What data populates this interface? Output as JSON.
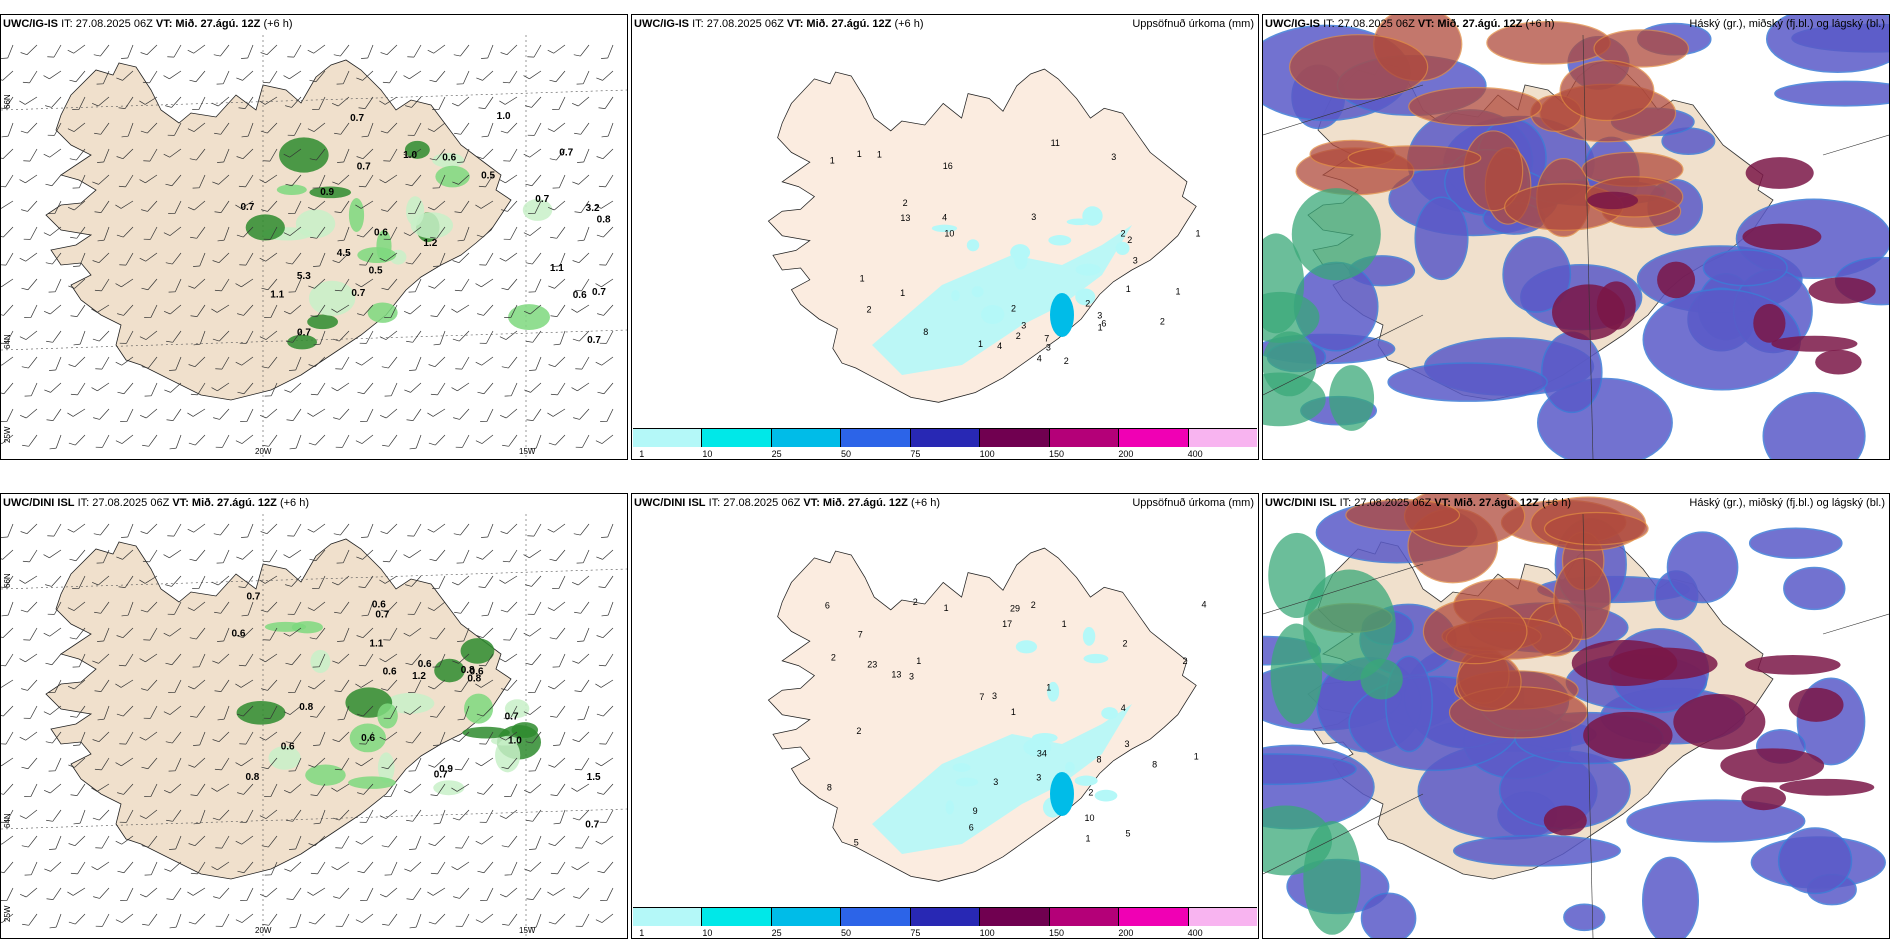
{
  "panels": {
    "top_left": {
      "model": "UWC/IG-IS",
      "it": "IT: 27.08.2025 06Z",
      "vt": "VT: Mið. 27.ágú. 12Z",
      "lead": "(+6 h)",
      "right": ""
    },
    "top_mid": {
      "model": "UWC/IG-IS",
      "it": "IT: 27.08.2025 06Z",
      "vt": "VT: Mið. 27.ágú. 12Z",
      "lead": "(+6 h)",
      "right": "Uppsöfnuð úrkoma (mm)"
    },
    "top_right": {
      "model": "UWC/IG-IS",
      "it": "IT: 27.08.2025 06Z",
      "vt": "VT: Mið. 27.ágú. 12Z",
      "lead": "(+6 h)",
      "right": "Háský (gr.), miðský (fj.bl.) og lágský (bl.)"
    },
    "bot_left": {
      "model": "UWC/DINI ISL",
      "it": "IT: 27.08.2025 06Z",
      "vt": "VT: Mið. 27.ágú. 12Z",
      "lead": "(+6 h)",
      "right": ""
    },
    "bot_mid": {
      "model": "UWC/DINI ISL",
      "it": "IT: 27.08.2025 06Z",
      "vt": "VT: Mið. 27.ágú. 12Z",
      "lead": "(+6 h)",
      "right": "Uppsöfnuð úrkoma (mm)"
    },
    "bot_right": {
      "model": "UWC/DINI ISL",
      "it": "IT: 27.08.2025 06Z",
      "vt": "VT: Mið. 27.ágú. 12Z",
      "lead": "(+6 h)",
      "right": "Háský (gr.), miðský (fj.bl.) og lágský (bl.)"
    }
  },
  "axis_labels": {
    "lat66": "66N",
    "lat64": "64N",
    "lon25": "25W",
    "lon20": "20W",
    "lon15": "15W"
  },
  "precip_legend": {
    "colors": [
      "#b4f8f8",
      "#00e8e8",
      "#00bce8",
      "#2c64e8",
      "#2828b4",
      "#700050",
      "#b40078",
      "#f000b4",
      "#f8b4f0"
    ],
    "labels": [
      "1",
      "10",
      "25",
      "50",
      "75",
      "100",
      "150",
      "200",
      "400"
    ]
  },
  "top_left_labels": [
    "0.7",
    "3.2",
    "0.5",
    "0.8",
    "0.6",
    "0.7",
    "0.5",
    "1.0",
    "0.6",
    "0.7",
    "0.9",
    "1.1",
    "0.7",
    "0.7",
    "1.1",
    "1.2",
    "4.5",
    "0.7",
    "0.7",
    "1.0",
    "0.7",
    "0.6",
    "0.7",
    "5.3"
  ],
  "bot_left_labels": [
    "0.6",
    "1.0",
    "0.8",
    "0.6",
    "0.8",
    "0.7",
    "1.5",
    "0.6",
    "0.6",
    "0.8",
    "0.7",
    "1.1",
    "0.6",
    "1.2",
    "0.7",
    "0.9",
    "0.6",
    "0.7",
    "0.8",
    "0.6",
    "0.7"
  ],
  "top_mid_labels": [
    "1",
    "3",
    "3",
    "1",
    "1",
    "2",
    "2",
    "1",
    "2",
    "2",
    "1",
    "2",
    "4",
    "2",
    "3",
    "3",
    "3",
    "6",
    "1",
    "2",
    "1",
    "3",
    "13",
    "10",
    "7",
    "8",
    "11",
    "4",
    "16",
    "4",
    "1",
    "2",
    "1",
    "2",
    "1"
  ],
  "bot_mid_labels": [
    "3",
    "1",
    "1",
    "2",
    "4",
    "2",
    "5",
    "5",
    "3",
    "6",
    "10",
    "7",
    "2",
    "3",
    "1",
    "1",
    "3",
    "2",
    "2",
    "1",
    "1",
    "2",
    "8",
    "9",
    "7",
    "8",
    "8",
    "6",
    "13",
    "4",
    "2",
    "34",
    "23",
    "17",
    "29",
    "3",
    "1"
  ]
}
